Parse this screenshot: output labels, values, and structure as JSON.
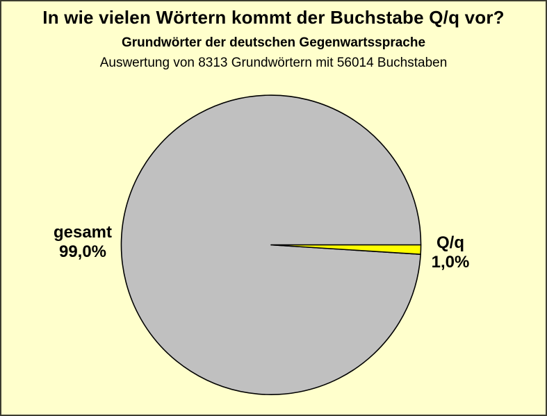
{
  "page": {
    "background_color": "#ffffcc",
    "border_color": "#3c3c30"
  },
  "chart_data": {
    "type": "pie",
    "title": "In wie vielen Wörtern kommt der Buchstabe Q/q vor?",
    "subtitle": "Grundwörter der deutschen Gegenwartssprache",
    "caption": "Auswertung von 8313 Grundwörtern mit 56014 Buchstaben",
    "total_words": 8313,
    "total_letters": 56014,
    "start_angle_deg": 0,
    "direction": "clockwise",
    "outline_color": "#000000",
    "legend_position": "none",
    "labels_outside": true,
    "slices": [
      {
        "label": "Q/q",
        "value": 1.0,
        "value_label": "1,0%",
        "color": "#ffff00"
      },
      {
        "label": "gesamt",
        "value": 99.0,
        "value_label": "99,0%",
        "color": "#c0c0c0"
      }
    ]
  }
}
